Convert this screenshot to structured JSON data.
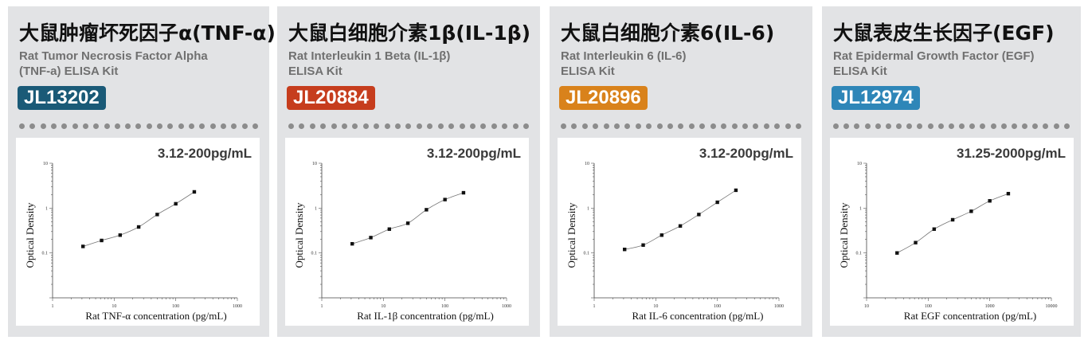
{
  "colors": {
    "panel_bg": "#e2e3e5",
    "text_dark": "#111111",
    "text_gray": "#707070",
    "dot_gray": "#8c8c8c"
  },
  "panels": [
    {
      "title": "大鼠肿瘤坏死因子α(TNF-α)",
      "subtitle_line1": "Rat Tumor Necrosis Factor Alpha",
      "subtitle_line2": "(TNF-a) ELISA Kit",
      "catalog": "JL13202",
      "badge_color": "#1a5a77",
      "range": "3.12-200pg/mL"
    },
    {
      "title": "大鼠白细胞介素1β(IL-1β)",
      "subtitle_line1": " Rat Interleukin 1 Beta (IL-1β)",
      "subtitle_line2": "ELISA Kit",
      "catalog": "JL20884",
      "badge_color": "#c63d1d",
      "range": "3.12-200pg/mL"
    },
    {
      "title": "大鼠白细胞介素6(IL-6)",
      "subtitle_line1": "Rat Interleukin 6 (IL-6)",
      "subtitle_line2": "ELISA Kit",
      "catalog": "JL20896",
      "badge_color": "#d9821b",
      "range": "3.12-200pg/mL"
    },
    {
      "title": "大鼠表皮生长因子(EGF)",
      "subtitle_line1": "Rat Epidermal Growth Factor (EGF)",
      "subtitle_line2": "ELISA Kit",
      "catalog": "JL12974",
      "badge_color": "#2e86b8",
      "range": "31.25-2000pg/mL"
    }
  ],
  "chart_data": [
    {
      "type": "scatter",
      "xlabel": "Rat TNF-α concentration (pg/mL)",
      "ylabel": "Optical Density",
      "x_scale": "log",
      "y_scale": "log",
      "xlim": [
        1,
        1000
      ],
      "ylim": [
        0.01,
        10
      ],
      "x_tick_labels": [
        "1",
        "10",
        "100",
        "1000"
      ],
      "y_tick_labels": [
        "10",
        "1",
        "0.1"
      ],
      "x": [
        3.12,
        6.25,
        12.5,
        25,
        50,
        100,
        200
      ],
      "y": [
        0.14,
        0.19,
        0.25,
        0.38,
        0.72,
        1.25,
        2.3
      ],
      "fit_line": true
    },
    {
      "type": "scatter",
      "xlabel": "Rat IL-1β concentration (pg/mL)",
      "ylabel": "Optical Density",
      "x_scale": "log",
      "y_scale": "log",
      "xlim": [
        1,
        1000
      ],
      "ylim": [
        0.01,
        10
      ],
      "x_tick_labels": [
        "1",
        "10",
        "100",
        "1000"
      ],
      "y_tick_labels": [
        "10",
        "1",
        "0.1"
      ],
      "x": [
        3.12,
        6.25,
        12.5,
        25,
        50,
        100,
        200
      ],
      "y": [
        0.16,
        0.22,
        0.34,
        0.46,
        0.92,
        1.55,
        2.2
      ],
      "fit_line": true
    },
    {
      "type": "scatter",
      "xlabel": "Rat IL-6 concentration (pg/mL)",
      "ylabel": "Optical Density",
      "x_scale": "log",
      "y_scale": "log",
      "xlim": [
        1,
        1000
      ],
      "ylim": [
        0.01,
        10
      ],
      "x_tick_labels": [
        "1",
        "10",
        "100",
        "1000"
      ],
      "y_tick_labels": [
        "10",
        "1",
        "0.1"
      ],
      "x": [
        3.12,
        6.25,
        12.5,
        25,
        50,
        100,
        200
      ],
      "y": [
        0.12,
        0.15,
        0.25,
        0.4,
        0.72,
        1.35,
        2.5
      ],
      "fit_line": true
    },
    {
      "type": "scatter",
      "xlabel": "Rat EGF concentration (pg/mL)",
      "ylabel": "Optical Density",
      "x_scale": "log",
      "y_scale": "log",
      "xlim": [
        10,
        10000
      ],
      "ylim": [
        0.01,
        10
      ],
      "x_tick_labels": [
        "10",
        "100",
        "1000",
        "10000"
      ],
      "y_tick_labels": [
        "10",
        "1",
        "0.1"
      ],
      "x": [
        31.25,
        62.5,
        125,
        250,
        500,
        1000,
        2000
      ],
      "y": [
        0.1,
        0.17,
        0.34,
        0.55,
        0.85,
        1.45,
        2.1
      ],
      "fit_line": true
    }
  ]
}
